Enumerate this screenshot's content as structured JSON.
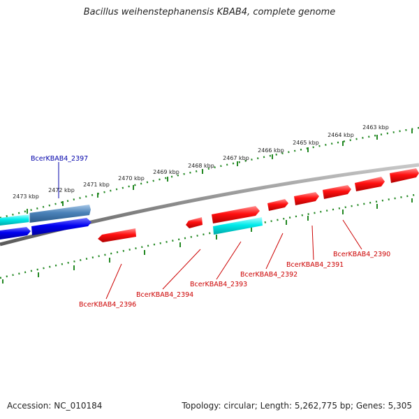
{
  "title": "Bacillus weihenstephanensis KBAB4, complete genome",
  "accession": "Accession: NC_010184",
  "summary": "Topology: circular; Length: 5,262,775 bp; Genes: 5,305",
  "colors": {
    "backbone": "#808080",
    "tick": "#228822",
    "forward": "#ff0000",
    "reverse_blue": "#0000ee",
    "steel": "#4682b4",
    "cyan": "#00e5e5",
    "label_red": "#cc0000",
    "label_blue": "#0000aa"
  },
  "ticks": [
    {
      "label": "2463 kbp"
    },
    {
      "label": "2464 kbp"
    },
    {
      "label": "2465 kbp"
    },
    {
      "label": "2466 kbp"
    },
    {
      "label": "2467 kbp"
    },
    {
      "label": "2468 kbp"
    },
    {
      "label": "2469 kbp"
    },
    {
      "label": "2470 kbp"
    },
    {
      "label": "2471 kbp"
    },
    {
      "label": "2472 kbp"
    },
    {
      "label": "2473 kbp"
    }
  ],
  "gene_labels": [
    {
      "name": "BcerKBAB4_2397",
      "color": "label_blue"
    },
    {
      "name": "BcerKBAB4_2390",
      "color": "label_red"
    },
    {
      "name": "BcerKBAB4_2391",
      "color": "label_red"
    },
    {
      "name": "BcerKBAB4_2392",
      "color": "label_red"
    },
    {
      "name": "BcerKBAB4_2393",
      "color": "label_red"
    },
    {
      "name": "BcerKBAB4_2394",
      "color": "label_red"
    },
    {
      "name": "BcerKBAB4_2396",
      "color": "label_red"
    }
  ]
}
